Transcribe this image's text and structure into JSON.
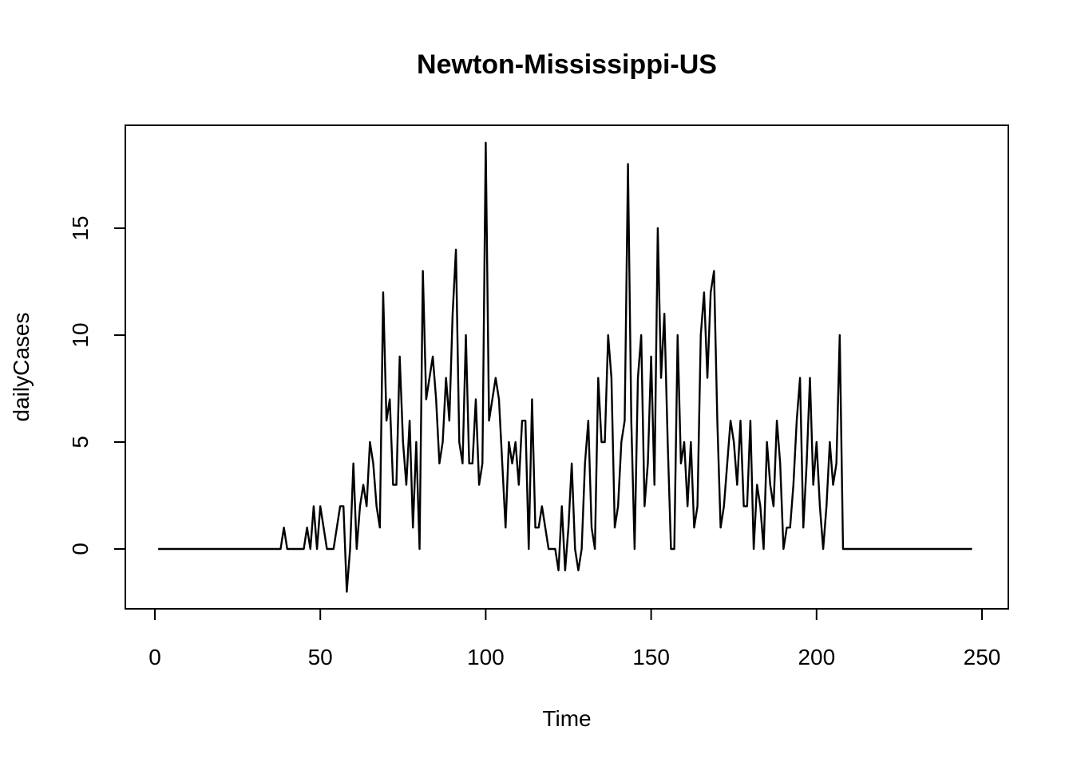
{
  "chart_data": {
    "type": "line",
    "title": "Newton-Mississippi-US",
    "xlabel": "Time",
    "ylabel": "dailyCases",
    "xlim": [
      1,
      248
    ],
    "ylim": [
      -2,
      19
    ],
    "x_ticks": [
      0,
      50,
      100,
      150,
      200,
      250
    ],
    "y_ticks": [
      0,
      5,
      10,
      15
    ],
    "x_tick_labels": [
      "0",
      "50",
      "100",
      "150",
      "200",
      "250"
    ],
    "y_tick_labels": [
      "0",
      "5",
      "10",
      "15"
    ],
    "grid": false,
    "series": [
      {
        "x_start": 1,
        "values": [
          0,
          0,
          0,
          0,
          0,
          0,
          0,
          0,
          0,
          0,
          0,
          0,
          0,
          0,
          0,
          0,
          0,
          0,
          0,
          0,
          0,
          0,
          0,
          0,
          0,
          0,
          0,
          0,
          0,
          0,
          0,
          0,
          0,
          0,
          0,
          0,
          0,
          0,
          1,
          0,
          0,
          0,
          0,
          0,
          0,
          1,
          0,
          2,
          0,
          2,
          1,
          0,
          0,
          0,
          1,
          2,
          2,
          -2,
          0,
          4,
          0,
          2,
          3,
          2,
          5,
          4,
          2,
          1,
          12,
          6,
          7,
          3,
          3,
          9,
          5,
          3,
          6,
          1,
          5,
          0,
          13,
          7,
          8,
          9,
          7,
          4,
          5,
          8,
          6,
          11,
          14,
          5,
          4,
          10,
          4,
          4,
          7,
          3,
          4,
          19,
          6,
          7,
          8,
          7,
          4,
          1,
          5,
          4,
          5,
          3,
          6,
          6,
          0,
          7,
          1,
          1,
          2,
          1,
          0,
          0,
          0,
          -1,
          2,
          -1,
          1,
          4,
          0,
          -1,
          0,
          4,
          6,
          1,
          0,
          8,
          5,
          5,
          10,
          8,
          1,
          2,
          5,
          6,
          18,
          6,
          0,
          8,
          10,
          2,
          4,
          9,
          3,
          15,
          8,
          11,
          5,
          0,
          0,
          10,
          4,
          5,
          2,
          5,
          1,
          2,
          10,
          12,
          8,
          12,
          13,
          6,
          1,
          2,
          4,
          6,
          5,
          3,
          6,
          2,
          2,
          6,
          0,
          3,
          2,
          0,
          5,
          3,
          2,
          6,
          4,
          0,
          1,
          1,
          3,
          6,
          8,
          1,
          4,
          8,
          3,
          5,
          2,
          0,
          2,
          5,
          3,
          4,
          10,
          0,
          0,
          0,
          0,
          0,
          0,
          0,
          0,
          0,
          0,
          0,
          0,
          0,
          0,
          0,
          0,
          0,
          0,
          0,
          0,
          0,
          0,
          0,
          0,
          0,
          0,
          0,
          0,
          0,
          0,
          0,
          0,
          0,
          0,
          0,
          0,
          0,
          0,
          0,
          0
        ]
      }
    ]
  }
}
